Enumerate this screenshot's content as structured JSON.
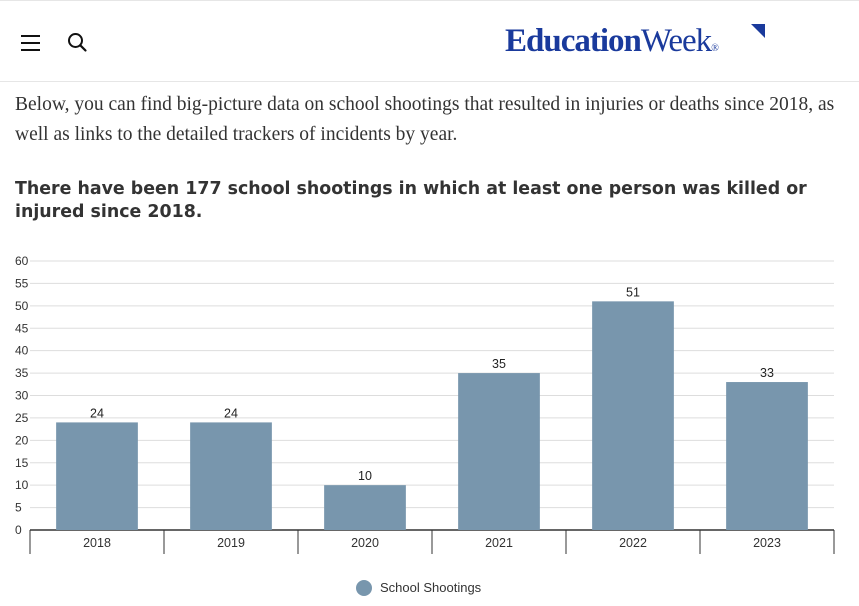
{
  "header": {
    "menu_icon": "hamburger-menu-icon",
    "search_icon": "search-icon",
    "logo": {
      "bold_part": "Education",
      "regular_part": "Week",
      "mark": "®",
      "color": "#1a3a9c"
    }
  },
  "article": {
    "intro": "Below, you can find big-picture data on school shootings that resulted in injuries or deaths since 2018, as well as links to the detailed trackers of incidents by year."
  },
  "chart_data": {
    "type": "bar",
    "title": "There have been 177 school shootings in which at least one person was killed or injured since 2018.",
    "categories": [
      "2018",
      "2019",
      "2020",
      "2021",
      "2022",
      "2023"
    ],
    "series": [
      {
        "name": "School Shootings",
        "values": [
          24,
          24,
          10,
          35,
          51,
          33
        ],
        "color": "#7896ad"
      }
    ],
    "ylim": [
      0,
      60
    ],
    "yticks": [
      0,
      5,
      10,
      15,
      20,
      25,
      30,
      35,
      40,
      45,
      50,
      55,
      60
    ],
    "grid": true,
    "data_labels": true,
    "legend_position": "bottom"
  }
}
